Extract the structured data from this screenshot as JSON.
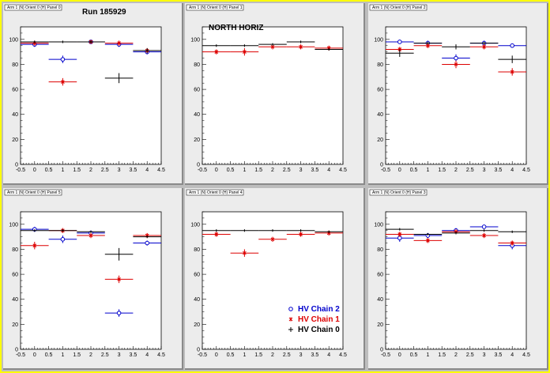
{
  "colors": {
    "chain2": "#0000cc",
    "chain1": "#dd0000",
    "chain0": "#000000"
  },
  "chart_data": [
    {
      "type": "scatter",
      "title": "Arm 1 (N) Orient 0 (H) Panel 0",
      "annotation": "Run 185929",
      "xlim": [
        -0.5,
        4.5
      ],
      "ylim": [
        0,
        110
      ],
      "xticks": [
        "-0.5",
        "0",
        "0.5",
        "1",
        "1.5",
        "2",
        "2.5",
        "3",
        "3.5",
        "4",
        "4.5"
      ],
      "yticks": [
        "0",
        "20",
        "40",
        "60",
        "80",
        "100"
      ],
      "series": [
        {
          "name": "HV Chain 2",
          "x": [
            0,
            1,
            2,
            3,
            4
          ],
          "y": [
            96,
            84,
            98,
            96,
            90
          ],
          "yerr": [
            2,
            3,
            1,
            2,
            2
          ]
        },
        {
          "name": "HV Chain 1",
          "x": [
            0,
            1,
            2,
            3,
            4
          ],
          "y": [
            97,
            66,
            98,
            97,
            91
          ],
          "yerr": [
            2,
            3,
            1,
            2,
            2
          ]
        },
        {
          "name": "HV Chain 0",
          "x": [
            0,
            1,
            2,
            3,
            4
          ],
          "y": [
            98,
            98,
            98,
            69,
            91
          ],
          "yerr": [
            1,
            1,
            1,
            4,
            2
          ]
        }
      ]
    },
    {
      "type": "scatter",
      "title": "Arm 1 (N) Orient 0 (H) Panel 1",
      "annotation": "NORTH HORIZ",
      "xlim": [
        -0.5,
        4.5
      ],
      "ylim": [
        0,
        110
      ],
      "xticks": [
        "-0.5",
        "0",
        "0.5",
        "1",
        "1.5",
        "2",
        "2.5",
        "3",
        "3.5",
        "4",
        "4.5"
      ],
      "yticks": [
        "0",
        "20",
        "40",
        "60",
        "80",
        "100"
      ],
      "series": [
        {
          "name": "HV Chain 2",
          "x": [],
          "y": [],
          "yerr": []
        },
        {
          "name": "HV Chain 1",
          "x": [
            0,
            1,
            2,
            3,
            4
          ],
          "y": [
            90,
            90,
            94,
            94,
            93
          ],
          "yerr": [
            2,
            3,
            2,
            2,
            2
          ]
        },
        {
          "name": "HV Chain 0",
          "x": [
            0,
            1,
            2,
            3,
            4
          ],
          "y": [
            95,
            95,
            96,
            98,
            92
          ],
          "yerr": [
            1,
            1,
            1,
            1,
            1
          ]
        }
      ]
    },
    {
      "type": "scatter",
      "title": "Arm 1 (N) Orient 0 (H) Panel 2",
      "annotation": "",
      "xlim": [
        -0.5,
        4.5
      ],
      "ylim": [
        0,
        110
      ],
      "xticks": [
        "-0.5",
        "0",
        "0.5",
        "1",
        "1.5",
        "2",
        "2.5",
        "3",
        "3.5",
        "4",
        "4.5"
      ],
      "yticks": [
        "0",
        "20",
        "40",
        "60",
        "80",
        "100"
      ],
      "series": [
        {
          "name": "HV Chain 2",
          "x": [
            0,
            1,
            2,
            3,
            4
          ],
          "y": [
            98,
            97,
            85,
            97,
            95
          ],
          "yerr": [
            1,
            2,
            3,
            2,
            1
          ]
        },
        {
          "name": "HV Chain 1",
          "x": [
            0,
            1,
            2,
            3,
            4
          ],
          "y": [
            92,
            95,
            80,
            94,
            74
          ],
          "yerr": [
            2,
            2,
            3,
            2,
            3
          ]
        },
        {
          "name": "HV Chain 0",
          "x": [
            0,
            1,
            2,
            3,
            4
          ],
          "y": [
            89,
            97,
            94,
            97,
            84
          ],
          "yerr": [
            3,
            1,
            2,
            1,
            3
          ]
        }
      ]
    },
    {
      "type": "scatter",
      "title": "Arm 1 (N) Orient 0 (H) Panel 5",
      "annotation": "",
      "xlim": [
        -0.5,
        4.5
      ],
      "ylim": [
        0,
        110
      ],
      "xticks": [
        "-0.5",
        "0",
        "0.5",
        "1",
        "1.5",
        "2",
        "2.5",
        "3",
        "3.5",
        "4",
        "4.5"
      ],
      "yticks": [
        "0",
        "20",
        "40",
        "60",
        "80",
        "100"
      ],
      "series": [
        {
          "name": "HV Chain 2",
          "x": [
            0,
            1,
            2,
            3,
            4
          ],
          "y": [
            96,
            88,
            93,
            29,
            85
          ],
          "yerr": [
            2,
            3,
            2,
            3,
            2
          ]
        },
        {
          "name": "HV Chain 1",
          "x": [
            0,
            1,
            2,
            3,
            4
          ],
          "y": [
            83,
            95,
            91,
            56,
            91
          ],
          "yerr": [
            3,
            2,
            2,
            3,
            2
          ]
        },
        {
          "name": "HV Chain 0",
          "x": [
            0,
            1,
            2,
            3,
            4
          ],
          "y": [
            95,
            95,
            94,
            76,
            90
          ],
          "yerr": [
            1,
            1,
            1,
            5,
            1
          ]
        }
      ]
    },
    {
      "type": "scatter",
      "title": "Arm 1 (N) Orient 0 (H) Panel 4",
      "annotation": "",
      "xlim": [
        -0.5,
        4.5
      ],
      "ylim": [
        0,
        110
      ],
      "xticks": [
        "-0.5",
        "0",
        "0.5",
        "1",
        "1.5",
        "2",
        "2.5",
        "3",
        "3.5",
        "4",
        "4.5"
      ],
      "yticks": [
        "0",
        "20",
        "40",
        "60",
        "80",
        "100"
      ],
      "legend": {
        "position": "bottom-right",
        "entries": [
          "HV Chain 2",
          "HV Chain 1",
          "HV Chain 0"
        ]
      },
      "series": [
        {
          "name": "HV Chain 2",
          "x": [],
          "y": [],
          "yerr": []
        },
        {
          "name": "HV Chain 1",
          "x": [
            0,
            1,
            2,
            3,
            4
          ],
          "y": [
            92,
            77,
            88,
            92,
            93
          ],
          "yerr": [
            2,
            3,
            2,
            2,
            2
          ]
        },
        {
          "name": "HV Chain 0",
          "x": [
            0,
            1,
            2,
            3,
            4
          ],
          "y": [
            95,
            95,
            95,
            95,
            94
          ],
          "yerr": [
            1,
            1,
            1,
            1,
            1
          ]
        }
      ]
    },
    {
      "type": "scatter",
      "title": "Arm 1 (N) Orient 0 (H) Panel 3",
      "annotation": "",
      "xlim": [
        -0.5,
        4.5
      ],
      "ylim": [
        0,
        110
      ],
      "xticks": [
        "-0.5",
        "0",
        "0.5",
        "1",
        "1.5",
        "2",
        "2.5",
        "3",
        "3.5",
        "4",
        "4.5"
      ],
      "yticks": [
        "0",
        "20",
        "40",
        "60",
        "80",
        "100"
      ],
      "series": [
        {
          "name": "HV Chain 2",
          "x": [
            0,
            1,
            2,
            3,
            4
          ],
          "y": [
            89,
            91,
            95,
            98,
            83
          ],
          "yerr": [
            3,
            2,
            2,
            1,
            3
          ]
        },
        {
          "name": "HV Chain 1",
          "x": [
            0,
            1,
            2,
            3,
            4
          ],
          "y": [
            92,
            87,
            94,
            91,
            85
          ],
          "yerr": [
            2,
            2,
            2,
            2,
            2
          ]
        },
        {
          "name": "HV Chain 0",
          "x": [
            0,
            1,
            2,
            3,
            4
          ],
          "y": [
            96,
            92,
            93,
            95,
            94
          ],
          "yerr": [
            1,
            1,
            1,
            1,
            1
          ]
        }
      ]
    }
  ]
}
